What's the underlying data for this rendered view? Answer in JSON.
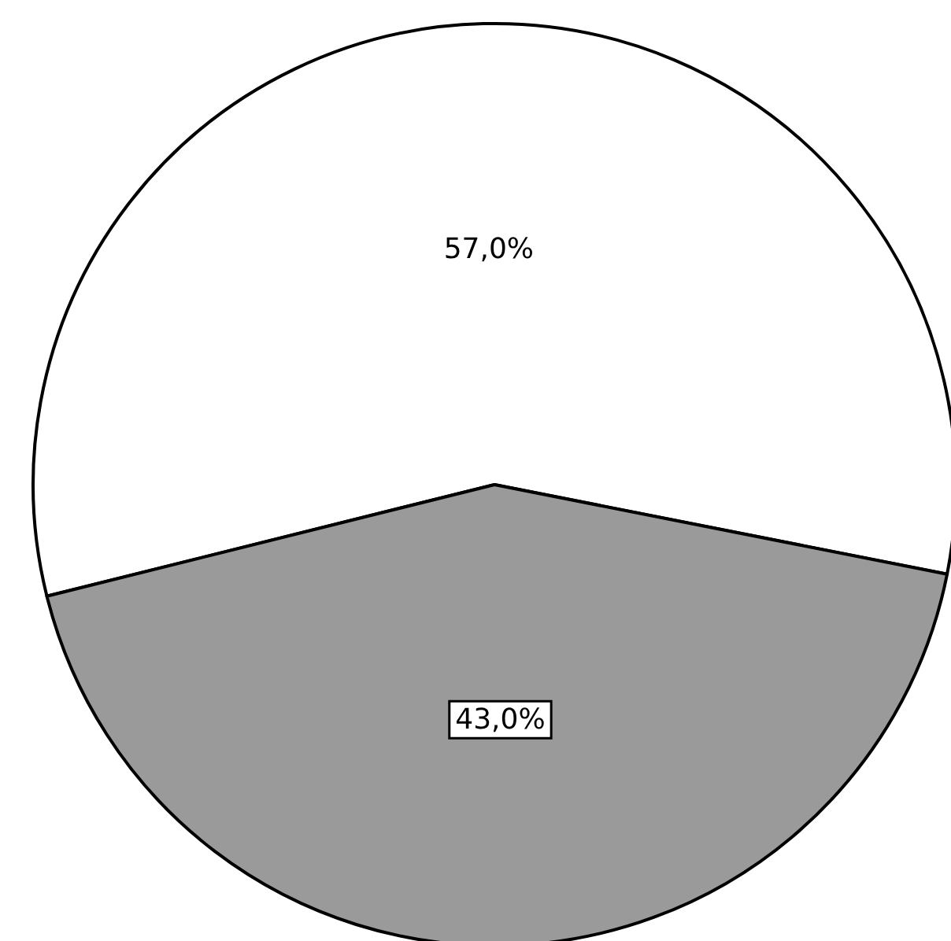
{
  "chart_data": {
    "type": "pie",
    "categories": [
      null,
      null
    ],
    "values": [
      57.0,
      43.0
    ],
    "colors": [
      "#ffffff",
      "#9a9a9a"
    ],
    "value_labels": [
      "57,0%",
      "43,0%"
    ]
  }
}
